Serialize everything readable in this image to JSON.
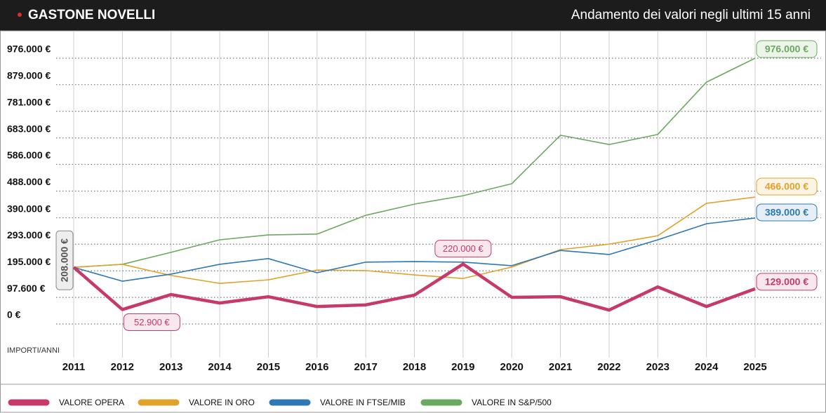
{
  "chart_data": {
    "type": "line",
    "title": "GASTONE NOVELLI",
    "subtitle": "Andamento dei valori negli ultimi 15 anni",
    "y_label": "IMPORTI/ANNI",
    "categories": [
      "2011",
      "2012",
      "2013",
      "2014",
      "2015",
      "2016",
      "2017",
      "2018",
      "2019",
      "2020",
      "2021",
      "2022",
      "2023",
      "2024",
      "2025"
    ],
    "ylim": [
      0,
      976000
    ],
    "yticks": [
      {
        "value": 0,
        "label": "0 €"
      },
      {
        "value": 97600,
        "label": "97.600 €"
      },
      {
        "value": 195000,
        "label": "195.000 €"
      },
      {
        "value": 293000,
        "label": "293.000 €"
      },
      {
        "value": 390000,
        "label": "390.000 €"
      },
      {
        "value": 488000,
        "label": "488.000 €"
      },
      {
        "value": 586000,
        "label": "586.000 €"
      },
      {
        "value": 683000,
        "label": "683.000 €"
      },
      {
        "value": 781000,
        "label": "781.000 €"
      },
      {
        "value": 879000,
        "label": "879.000 €"
      },
      {
        "value": 976000,
        "label": "976.000 €"
      }
    ],
    "grid": true,
    "legend": "bottom",
    "series": [
      {
        "name": "VALORE OPERA",
        "color": "#c8396b",
        "values": [
          208000,
          52900,
          108000,
          77000,
          100000,
          64000,
          70000,
          106000,
          220000,
          98000,
          100000,
          51000,
          136000,
          64000,
          129000
        ],
        "value_labels": [
          "208.000 €",
          "52.900 €",
          null,
          null,
          null,
          null,
          null,
          null,
          "220.000 €",
          null,
          null,
          null,
          null,
          null,
          "129.000 €"
        ]
      },
      {
        "name": "VALORE IN ORO",
        "color": "#e0a32a",
        "values": [
          208000,
          219000,
          178000,
          149000,
          162000,
          198000,
          196000,
          180000,
          167000,
          209000,
          273000,
          293000,
          324000,
          443000,
          466000
        ],
        "value_labels": [
          null,
          null,
          null,
          null,
          null,
          null,
          null,
          null,
          null,
          null,
          null,
          null,
          null,
          null,
          "466.000 €"
        ]
      },
      {
        "name": "VALORE IN FTSE/MIB",
        "color": "#2e78b5",
        "values": [
          208000,
          157000,
          183000,
          219000,
          240000,
          188000,
          227000,
          229000,
          227000,
          214000,
          270000,
          255000,
          309000,
          368000,
          389000
        ],
        "value_labels": [
          null,
          null,
          null,
          null,
          null,
          null,
          null,
          null,
          null,
          null,
          null,
          null,
          null,
          null,
          "389.000 €"
        ]
      },
      {
        "name": "VALORE IN S&P/500",
        "color": "#6aaa5e",
        "values": [
          208000,
          219000,
          263000,
          309000,
          327000,
          330000,
          399000,
          440000,
          471000,
          515000,
          693000,
          659000,
          696000,
          888000,
          976000
        ],
        "value_labels": [
          null,
          null,
          null,
          null,
          null,
          null,
          null,
          null,
          null,
          null,
          null,
          null,
          null,
          null,
          "976.000 €"
        ]
      }
    ]
  }
}
